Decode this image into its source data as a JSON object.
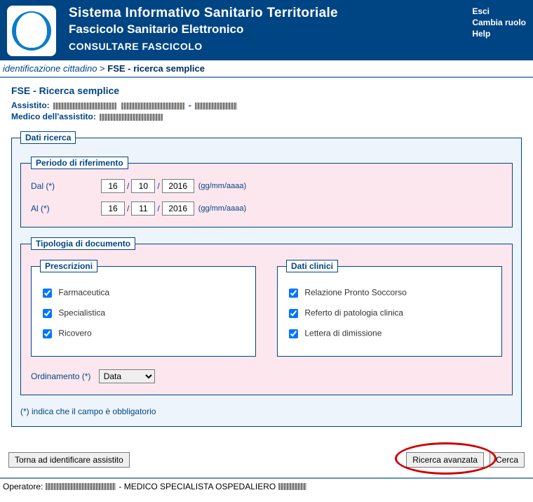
{
  "header": {
    "title_main": "Sistema Informativo Sanitario Territoriale",
    "title_sub": "Fascicolo Sanitario Elettronico",
    "module": "CONSULTARE FASCICOLO",
    "links": {
      "esci": "Esci",
      "cambia_ruolo": "Cambia ruolo",
      "help": "Help"
    },
    "colors": {
      "bg": "#004583",
      "text": "#ffffff"
    }
  },
  "breadcrumb": {
    "prev": "identificazione cittadino",
    "sep": ">",
    "current": "FSE - ricerca semplice"
  },
  "page": {
    "section_title": "FSE - Ricerca semplice",
    "assistito_label": "Assistito:",
    "medico_label": "Medico dell'assistito:"
  },
  "dati_ricerca": {
    "legend": "Dati ricerca",
    "periodo": {
      "legend": "Periodo di riferimento",
      "dal_label": "Dal (*)",
      "al_label": "Al (*)",
      "format_hint": "(gg/mm/aaaa)",
      "dal": {
        "g": "16",
        "m": "10",
        "a": "2016"
      },
      "al": {
        "g": "16",
        "m": "11",
        "a": "2016"
      }
    },
    "tipologia": {
      "legend": "Tipologia di documento",
      "prescrizioni": {
        "legend": "Prescrizioni",
        "items": {
          "farmaceutica": {
            "label": "Farmaceutica",
            "checked": true
          },
          "specialistica": {
            "label": "Specialistica",
            "checked": true
          },
          "ricovero": {
            "label": "Ricovero",
            "checked": true
          }
        }
      },
      "dati_clinici": {
        "legend": "Dati clinici",
        "items": {
          "pronto_soccorso": {
            "label": "Relazione Pronto Soccorso",
            "checked": true
          },
          "referto_patologia": {
            "label": "Referto di patologia clinica",
            "checked": true
          },
          "lettera_dimissione": {
            "label": "Lettera di dimissione",
            "checked": true
          }
        }
      }
    },
    "ordinamento": {
      "label": "Ordinamento (*)",
      "selected": "Data",
      "options": [
        "Data"
      ]
    },
    "note": "(*) indica che il campo è obbligatorio"
  },
  "actions": {
    "torna": "Torna ad identificare assistito",
    "ricerca_avanzata": "Ricerca avanzata",
    "cerca": "Cerca"
  },
  "footer": {
    "operatore_label": "Operatore:",
    "role": "- MEDICO SPECIALISTA OSPEDALIERO"
  }
}
